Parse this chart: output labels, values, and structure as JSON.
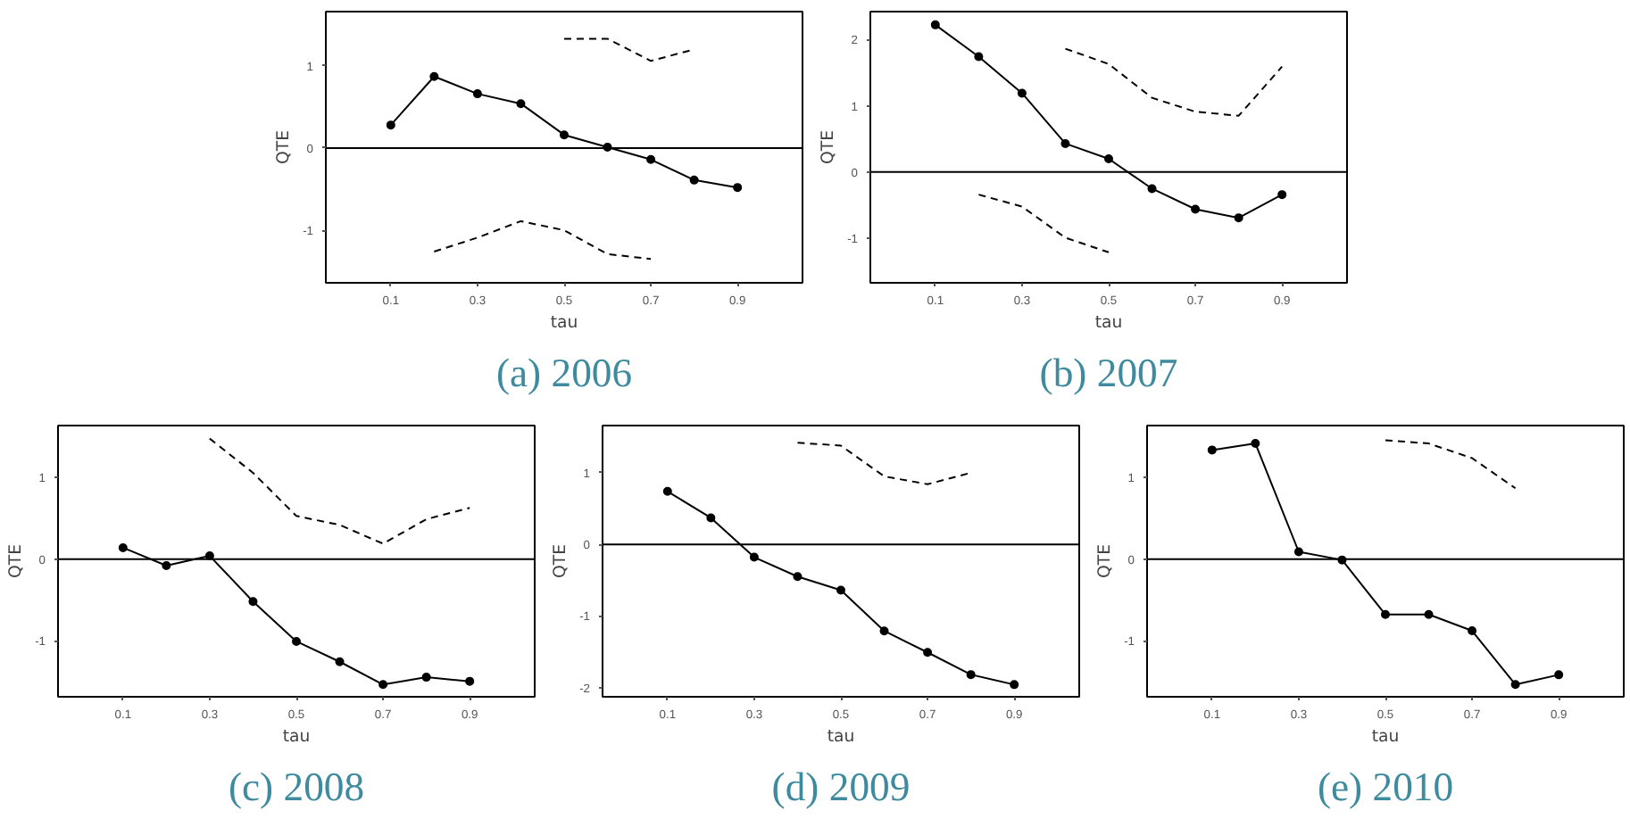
{
  "chart_data": [
    {
      "type": "line",
      "title": "(a) 2006",
      "xlabel": "tau",
      "ylabel": "QTE",
      "x": [
        0.1,
        0.2,
        0.3,
        0.4,
        0.5,
        0.6,
        0.7,
        0.8,
        0.9
      ],
      "xlim": [
        -0.05,
        1.05
      ],
      "xticks": [
        0.1,
        0.3,
        0.5,
        0.7,
        0.9
      ],
      "ylim": [
        -1.64,
        1.66
      ],
      "yticks": [
        -1,
        0,
        1
      ],
      "grid": false,
      "ref_lines": [
        {
          "axis": "y",
          "value": 0,
          "color": "#000000"
        }
      ],
      "series": [
        {
          "color": "#000000",
          "marker": "circle",
          "line_style": "solid",
          "values": [
            0.28,
            0.87,
            0.66,
            0.54,
            0.16,
            0.01,
            -0.14,
            -0.39,
            -0.48
          ]
        },
        {
          "color": "#000000",
          "marker": "none",
          "line_style": "dashed",
          "values": [
            null,
            null,
            null,
            null,
            1.33,
            1.33,
            1.06,
            1.2,
            null
          ]
        },
        {
          "color": "#000000",
          "marker": "none",
          "line_style": "dashed",
          "values": [
            null,
            -1.26,
            -1.09,
            -0.89,
            -1.0,
            -1.29,
            -1.35,
            null,
            null
          ]
        }
      ]
    },
    {
      "type": "line",
      "title": "(b) 2007",
      "xlabel": "tau",
      "ylabel": "QTE",
      "x": [
        0.1,
        0.2,
        0.3,
        0.4,
        0.5,
        0.6,
        0.7,
        0.8,
        0.9
      ],
      "xlim": [
        -0.05,
        1.05
      ],
      "xticks": [
        0.1,
        0.3,
        0.5,
        0.7,
        0.9
      ],
      "ylim": [
        -1.67,
        2.42
      ],
      "yticks": [
        -1,
        0,
        1,
        2
      ],
      "grid": false,
      "ref_lines": [
        {
          "axis": "y",
          "value": 0,
          "color": "#000000"
        }
      ],
      "series": [
        {
          "color": "#000000",
          "marker": "circle",
          "line_style": "solid",
          "values": [
            2.22,
            1.74,
            1.19,
            0.43,
            0.2,
            -0.25,
            -0.56,
            -0.69,
            -0.34
          ]
        },
        {
          "color": "#000000",
          "marker": "none",
          "line_style": "dashed",
          "values": [
            null,
            null,
            null,
            1.86,
            1.63,
            1.12,
            0.91,
            0.85,
            1.59
          ]
        },
        {
          "color": "#000000",
          "marker": "none",
          "line_style": "dashed",
          "values": [
            null,
            -0.34,
            -0.52,
            -0.99,
            -1.21,
            null,
            null,
            null,
            null
          ]
        }
      ]
    },
    {
      "type": "line",
      "title": "(c) 2008",
      "xlabel": "tau",
      "ylabel": "QTE",
      "x": [
        0.1,
        0.2,
        0.3,
        0.4,
        0.5,
        0.6,
        0.7,
        0.8,
        0.9
      ],
      "xlim": [
        -0.05,
        1.05
      ],
      "xticks": [
        0.1,
        0.3,
        0.5,
        0.7,
        0.9
      ],
      "ylim": [
        -1.69,
        1.64
      ],
      "yticks": [
        -1,
        0,
        1
      ],
      "grid": false,
      "ref_lines": [
        {
          "axis": "y",
          "value": 0,
          "color": "#000000"
        }
      ],
      "series": [
        {
          "color": "#000000",
          "marker": "circle",
          "line_style": "solid",
          "values": [
            0.14,
            -0.08,
            0.04,
            -0.52,
            -1.01,
            -1.26,
            -1.54,
            -1.45,
            -1.5
          ]
        },
        {
          "color": "#000000",
          "marker": "none",
          "line_style": "dashed",
          "values": [
            null,
            null,
            1.48,
            1.06,
            0.53,
            0.42,
            0.19,
            0.49,
            0.63
          ]
        }
      ]
    },
    {
      "type": "line",
      "title": "(d) 2009",
      "xlabel": "tau",
      "ylabel": "QTE",
      "x": [
        0.1,
        0.2,
        0.3,
        0.4,
        0.5,
        0.6,
        0.7,
        0.8,
        0.9
      ],
      "xlim": [
        -0.05,
        1.05
      ],
      "xticks": [
        0.1,
        0.3,
        0.5,
        0.7,
        0.9
      ],
      "ylim": [
        -2.13,
        1.66
      ],
      "yticks": [
        -2,
        -1,
        0,
        1
      ],
      "grid": false,
      "ref_lines": [
        {
          "axis": "y",
          "value": 0,
          "color": "#000000"
        }
      ],
      "series": [
        {
          "color": "#000000",
          "marker": "circle",
          "line_style": "solid",
          "values": [
            0.74,
            0.37,
            -0.18,
            -0.45,
            -0.64,
            -1.21,
            -1.51,
            -1.82,
            -1.96
          ]
        },
        {
          "color": "#000000",
          "marker": "none",
          "line_style": "dashed",
          "values": [
            null,
            null,
            null,
            1.42,
            1.38,
            0.95,
            0.84,
            1.0,
            null
          ]
        }
      ]
    },
    {
      "type": "line",
      "title": "(e) 2010",
      "xlabel": "tau",
      "ylabel": "QTE",
      "x": [
        0.1,
        0.2,
        0.3,
        0.4,
        0.5,
        0.6,
        0.7,
        0.8,
        0.9
      ],
      "xlim": [
        -0.05,
        1.05
      ],
      "xticks": [
        0.1,
        0.3,
        0.5,
        0.7,
        0.9
      ],
      "ylim": [
        -1.69,
        1.64
      ],
      "yticks": [
        -1,
        0,
        1
      ],
      "grid": false,
      "ref_lines": [
        {
          "axis": "y",
          "value": 0,
          "color": "#000000"
        }
      ],
      "series": [
        {
          "color": "#000000",
          "marker": "circle",
          "line_style": "solid",
          "values": [
            1.34,
            1.42,
            0.09,
            -0.01,
            -0.68,
            -0.68,
            -0.88,
            -1.54,
            -1.42
          ]
        },
        {
          "color": "#000000",
          "marker": "none",
          "line_style": "dashed",
          "values": [
            null,
            null,
            null,
            null,
            1.46,
            1.42,
            1.24,
            0.87,
            null
          ]
        }
      ]
    }
  ]
}
